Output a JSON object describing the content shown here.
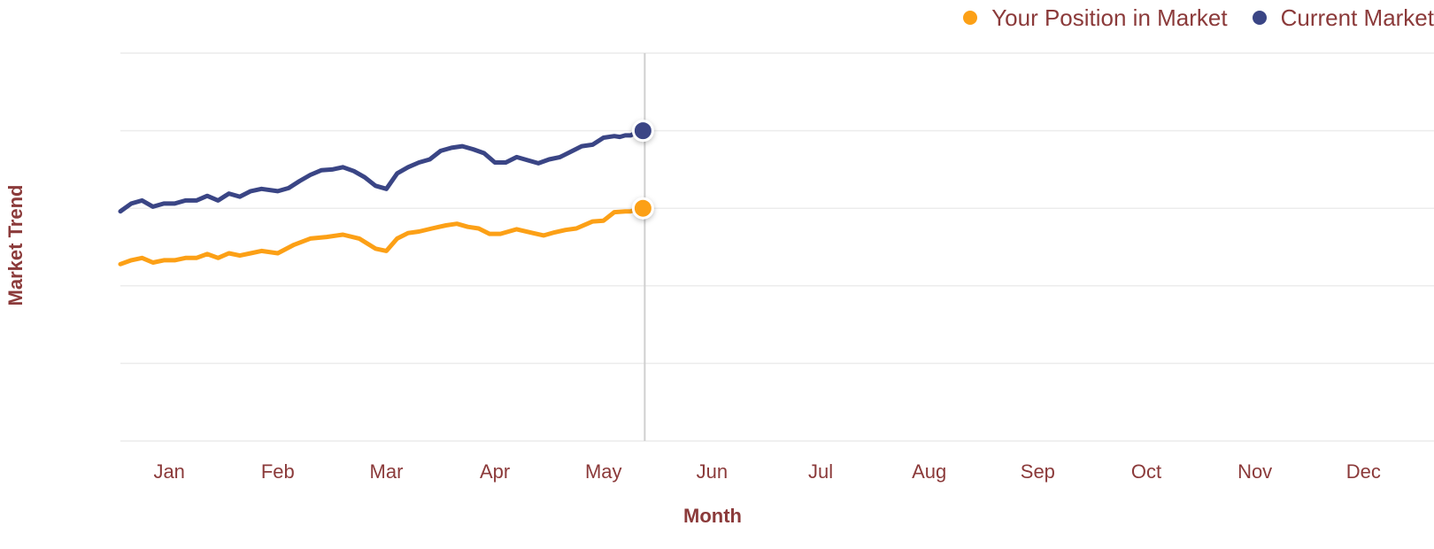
{
  "chart_data": {
    "type": "line",
    "xlabel": "Month",
    "ylabel": "Market Trend",
    "categories": [
      "Jan",
      "Feb",
      "Mar",
      "Apr",
      "May",
      "Jun",
      "Jul",
      "Aug",
      "Sep",
      "Oct",
      "Nov",
      "Dec"
    ],
    "xlim": [
      -0.45,
      11.65
    ],
    "ylim": [
      0,
      50
    ],
    "gridlines_y": [
      0,
      10,
      20,
      30,
      40,
      50
    ],
    "grid": true,
    "legend_position": "top-right",
    "crosshair_x": 4.38,
    "series": [
      {
        "name": "Your Position in Market",
        "color": "#fca016",
        "x": [
          -0.45,
          -0.35,
          -0.25,
          -0.15,
          -0.05,
          0.05,
          0.15,
          0.25,
          0.35,
          0.45,
          0.55,
          0.65,
          0.75,
          0.85,
          1.0,
          1.15,
          1.3,
          1.45,
          1.6,
          1.75,
          1.9,
          2.0,
          2.1,
          2.2,
          2.3,
          2.42,
          2.55,
          2.65,
          2.75,
          2.85,
          2.95,
          3.05,
          3.2,
          3.35,
          3.45,
          3.55,
          3.65,
          3.75,
          3.9,
          4.0,
          4.1,
          4.2,
          4.25,
          4.33
        ],
        "y": [
          22.8,
          23.3,
          23.6,
          23.0,
          23.3,
          23.3,
          23.6,
          23.6,
          24.1,
          23.6,
          24.2,
          23.9,
          24.2,
          24.5,
          24.2,
          25.3,
          26.1,
          26.3,
          26.6,
          26.1,
          24.8,
          24.5,
          26.1,
          26.8,
          27.0,
          27.4,
          27.8,
          28.0,
          27.6,
          27.4,
          26.7,
          26.7,
          27.3,
          26.8,
          26.5,
          26.9,
          27.2,
          27.4,
          28.3,
          28.4,
          29.5,
          29.6,
          29.6,
          30.0
        ],
        "end_value": 30.0
      },
      {
        "name": "Current Market",
        "color": "#3a4585",
        "x": [
          -0.45,
          -0.35,
          -0.25,
          -0.15,
          -0.05,
          0.05,
          0.15,
          0.25,
          0.35,
          0.45,
          0.55,
          0.65,
          0.75,
          0.85,
          1.0,
          1.1,
          1.2,
          1.3,
          1.4,
          1.5,
          1.6,
          1.7,
          1.8,
          1.9,
          2.0,
          2.1,
          2.2,
          2.3,
          2.4,
          2.5,
          2.6,
          2.7,
          2.8,
          2.9,
          3.0,
          3.1,
          3.2,
          3.3,
          3.4,
          3.5,
          3.6,
          3.7,
          3.8,
          3.9,
          4.0,
          4.1,
          4.15,
          4.2,
          4.25,
          4.33
        ],
        "y": [
          29.6,
          30.6,
          31.0,
          30.2,
          30.6,
          30.6,
          31.0,
          31.0,
          31.6,
          31.0,
          31.9,
          31.5,
          32.2,
          32.5,
          32.2,
          32.6,
          33.5,
          34.3,
          34.9,
          35.0,
          35.3,
          34.8,
          34.0,
          32.9,
          32.5,
          34.5,
          35.3,
          35.9,
          36.3,
          37.4,
          37.8,
          38.0,
          37.6,
          37.1,
          35.9,
          35.9,
          36.6,
          36.2,
          35.8,
          36.3,
          36.6,
          37.3,
          38.0,
          38.2,
          39.1,
          39.3,
          39.2,
          39.4,
          39.4,
          40.0
        ],
        "end_value": 40.0
      }
    ]
  }
}
